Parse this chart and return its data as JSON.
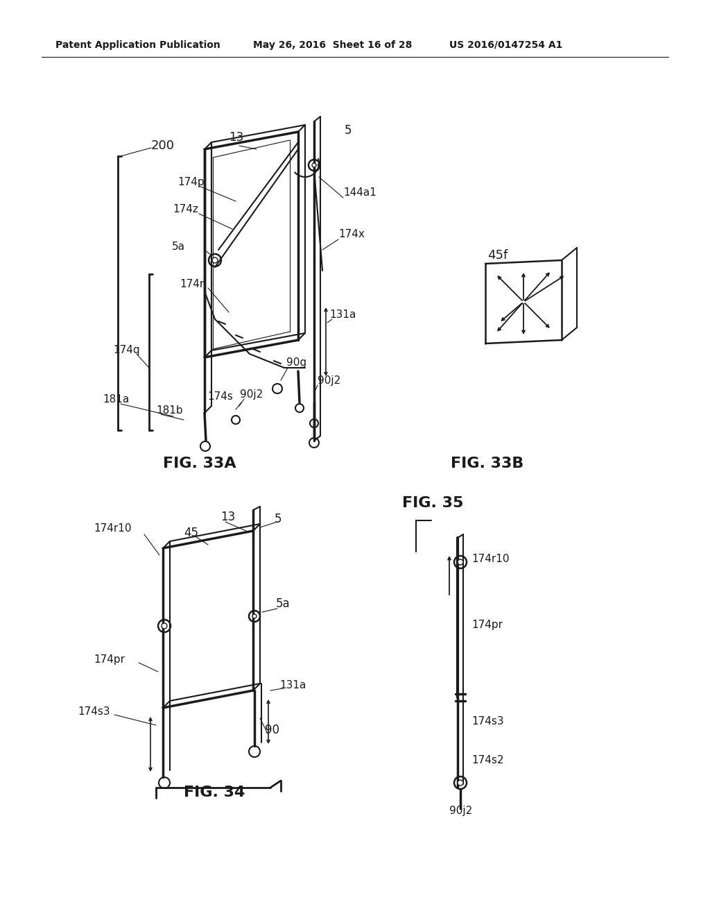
{
  "bg": "#ffffff",
  "lc": "#1a1a1a",
  "tc": "#1a1a1a",
  "header_left": "Patent Application Publication",
  "header_mid": "May 26, 2016  Sheet 16 of 28",
  "header_right": "US 2016/0147254 A1",
  "fig33a": "FIG. 33A",
  "fig33b": "FIG. 33B",
  "fig34": "FIG. 34",
  "fig35": "FIG. 35"
}
